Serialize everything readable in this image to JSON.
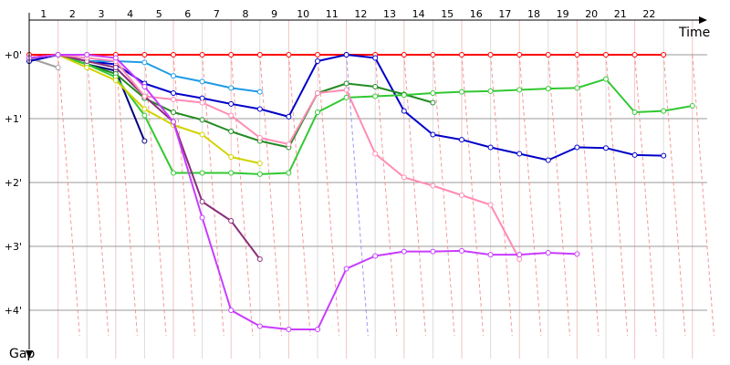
{
  "chart_data": {
    "type": "line",
    "xlabel": "Time",
    "ylabel": "Gap",
    "x_ticks": [
      "1",
      "2",
      "3",
      "4",
      "5",
      "6",
      "7",
      "8",
      "9",
      "10",
      "11",
      "12",
      "13",
      "14",
      "15",
      "16",
      "17",
      "18",
      "19",
      "20",
      "21",
      "22"
    ],
    "y_ticks": [
      "+0'",
      "+1'",
      "+2'",
      "+3'",
      "+4'"
    ],
    "xlim": [
      0,
      23.5
    ],
    "ylim": [
      0,
      4.6
    ],
    "colors": {
      "axis": "#000000",
      "hgrid": "#999999",
      "vgrid": "#dddddd",
      "vgrid_alt": "#f2c6c6",
      "lap_marker": "#f08080",
      "lap_marker_blue": "#8080f0"
    },
    "series": [
      {
        "color": "#ff0000",
        "points": [
          [
            0,
            0
          ],
          [
            1,
            0
          ],
          [
            2,
            0
          ],
          [
            3,
            0
          ],
          [
            4,
            0
          ],
          [
            5,
            0
          ],
          [
            6,
            0
          ],
          [
            7,
            0
          ],
          [
            8,
            0
          ],
          [
            9,
            0
          ],
          [
            10,
            0
          ],
          [
            11,
            0
          ],
          [
            12,
            0
          ],
          [
            13,
            0
          ],
          [
            14,
            0
          ],
          [
            15,
            0
          ],
          [
            16,
            0
          ],
          [
            17,
            0
          ],
          [
            18,
            0
          ],
          [
            19,
            0
          ],
          [
            20,
            0
          ],
          [
            21,
            0
          ],
          [
            22,
            0
          ]
        ]
      },
      {
        "color": "#a0a0a0",
        "points": [
          [
            0,
            0.05
          ],
          [
            1,
            0.2
          ]
        ]
      },
      {
        "color": "#000080",
        "points": [
          [
            0,
            0.1
          ],
          [
            1,
            0
          ],
          [
            2,
            0.15
          ],
          [
            3,
            0.25
          ],
          [
            4,
            1.35
          ]
        ]
      },
      {
        "color": "#0000c8",
        "points": [
          [
            0,
            0.1
          ],
          [
            1,
            0
          ],
          [
            2,
            0.1
          ],
          [
            3,
            0.15
          ],
          [
            4,
            0.45
          ],
          [
            5,
            0.6
          ],
          [
            6,
            0.68
          ],
          [
            7,
            0.77
          ],
          [
            8,
            0.85
          ],
          [
            9,
            0.97
          ],
          [
            10,
            0.1
          ],
          [
            11,
            0
          ],
          [
            12,
            0.05
          ],
          [
            13,
            0.88
          ],
          [
            14,
            1.25
          ],
          [
            15,
            1.33
          ],
          [
            16,
            1.45
          ],
          [
            17,
            1.55
          ],
          [
            18,
            1.65
          ],
          [
            19,
            1.45
          ],
          [
            20,
            1.46
          ],
          [
            21,
            1.57
          ],
          [
            22,
            1.58
          ]
        ]
      },
      {
        "color": "#1e9be6",
        "points": [
          [
            0,
            0.05
          ],
          [
            1,
            0
          ],
          [
            2,
            0.1
          ],
          [
            3,
            0.1
          ],
          [
            4,
            0.12
          ],
          [
            5,
            0.33
          ],
          [
            6,
            0.42
          ],
          [
            7,
            0.52
          ],
          [
            8,
            0.58
          ]
        ]
      },
      {
        "color": "#228b22",
        "points": [
          [
            0,
            0.05
          ],
          [
            1,
            0
          ],
          [
            2,
            0.15
          ],
          [
            3,
            0.3
          ],
          [
            4,
            0.68
          ],
          [
            5,
            0.9
          ],
          [
            6,
            1.02
          ],
          [
            7,
            1.2
          ],
          [
            8,
            1.35
          ],
          [
            9,
            1.45
          ],
          [
            10,
            0.6
          ],
          [
            11,
            0.45
          ],
          [
            12,
            0.5
          ],
          [
            13,
            0.62
          ],
          [
            14,
            0.75
          ]
        ]
      },
      {
        "color": "#32c832",
        "points": [
          [
            0,
            0.05
          ],
          [
            1,
            0
          ],
          [
            2,
            0.15
          ],
          [
            3,
            0.35
          ],
          [
            4,
            0.95
          ],
          [
            5,
            1.85
          ],
          [
            6,
            1.85
          ],
          [
            7,
            1.85
          ],
          [
            8,
            1.87
          ],
          [
            9,
            1.85
          ],
          [
            10,
            0.9
          ],
          [
            11,
            0.67
          ],
          [
            12,
            0.65
          ],
          [
            13,
            0.63
          ],
          [
            14,
            0.6
          ],
          [
            15,
            0.58
          ],
          [
            16,
            0.57
          ],
          [
            17,
            0.55
          ],
          [
            18,
            0.53
          ],
          [
            19,
            0.52
          ],
          [
            20,
            0.38
          ],
          [
            21,
            0.9
          ],
          [
            22,
            0.88
          ],
          [
            23,
            0.8
          ]
        ]
      },
      {
        "color": "#d2d200",
        "points": [
          [
            0,
            0.05
          ],
          [
            1,
            0
          ],
          [
            2,
            0.2
          ],
          [
            3,
            0.4
          ],
          [
            4,
            0.85
          ],
          [
            5,
            1.1
          ],
          [
            6,
            1.25
          ],
          [
            7,
            1.6
          ],
          [
            8,
            1.7
          ]
        ]
      },
      {
        "color": "#8b2e7a",
        "points": [
          [
            0,
            0.05
          ],
          [
            1,
            0
          ],
          [
            2,
            0.1
          ],
          [
            3,
            0.2
          ],
          [
            4,
            0.65
          ],
          [
            5,
            1.05
          ],
          [
            6,
            2.3
          ],
          [
            7,
            2.6
          ],
          [
            8,
            3.2
          ]
        ]
      },
      {
        "color": "#ff8cb4",
        "points": [
          [
            0,
            0.05
          ],
          [
            1,
            0
          ],
          [
            2,
            0.05
          ],
          [
            3,
            0.1
          ],
          [
            4,
            0.65
          ],
          [
            5,
            0.7
          ],
          [
            6,
            0.75
          ],
          [
            7,
            0.95
          ],
          [
            8,
            1.3
          ],
          [
            9,
            1.4
          ],
          [
            10,
            0.6
          ],
          [
            11,
            0.55
          ],
          [
            12,
            1.55
          ],
          [
            13,
            1.92
          ],
          [
            14,
            2.05
          ],
          [
            15,
            2.2
          ],
          [
            16,
            2.35
          ],
          [
            17,
            3.2
          ]
        ]
      },
      {
        "color": "#c83cff",
        "points": [
          [
            0,
            0.05
          ],
          [
            1,
            0
          ],
          [
            2,
            0
          ],
          [
            3,
            0.05
          ],
          [
            4,
            0.5
          ],
          [
            5,
            1.05
          ],
          [
            6,
            2.55
          ],
          [
            7,
            4
          ],
          [
            8,
            4.25
          ],
          [
            9,
            4.3
          ],
          [
            10,
            4.3
          ],
          [
            11,
            3.35
          ],
          [
            12,
            3.15
          ],
          [
            13,
            3.08
          ],
          [
            14,
            3.08
          ],
          [
            15,
            3.07
          ],
          [
            16,
            3.13
          ],
          [
            17,
            3.13
          ],
          [
            18,
            3.1
          ],
          [
            19,
            3.12
          ]
        ]
      }
    ]
  }
}
